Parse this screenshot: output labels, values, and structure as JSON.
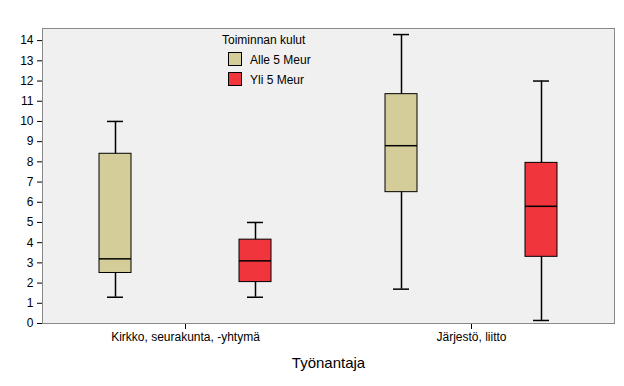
{
  "chart_data": {
    "type": "box",
    "x_label": "Työnantaja",
    "y_label": null,
    "categories": [
      "Kirkko, seurakunta, -yhtymä",
      "Järjestö, liitto"
    ],
    "legend_title": "Toiminnan kulut",
    "legend": "top",
    "grid": false,
    "series": [
      {
        "name": "Alle 5 Meur",
        "color": "#d4cd9a",
        "min": [
          1.3,
          1.7
        ],
        "q1": [
          2.5,
          6.5
        ],
        "median": [
          3.2,
          8.8
        ],
        "q3": [
          8.4,
          11.35
        ],
        "max": [
          10.0,
          14.3
        ]
      },
      {
        "name": "Yli 5 Meur",
        "color": "#f0353d",
        "min": [
          1.3,
          0.15
        ],
        "q1": [
          2.05,
          3.3
        ],
        "median": [
          3.1,
          5.8
        ],
        "q3": [
          4.15,
          7.95
        ],
        "max": [
          5.0,
          12.0
        ]
      }
    ],
    "ylim": [
      0,
      14.6
    ],
    "yticks": [
      0,
      1,
      2,
      3,
      4,
      5,
      6,
      7,
      8,
      9,
      10,
      11,
      12,
      13,
      14
    ]
  }
}
